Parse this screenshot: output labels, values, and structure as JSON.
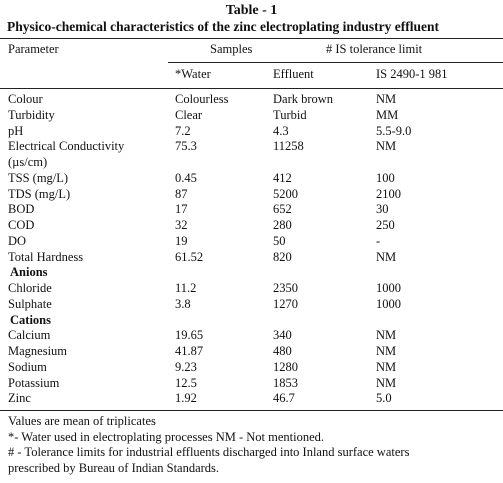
{
  "table": {
    "caption": "Table -  1",
    "title": "Physico-chemical characteristics of the zinc electroplating industry effluent",
    "header": {
      "parameter": "Parameter",
      "samples": "Samples",
      "limit": "# IS tolerance limit",
      "columns": [
        "*Water",
        "Effluent",
        "IS 2490-1 981"
      ]
    },
    "rows": [
      {
        "cells": [
          "Colour",
          "Colourless",
          "Dark brown",
          "NM"
        ]
      },
      {
        "cells": [
          "Turbidity",
          "Clear",
          "Turbid",
          "MM"
        ]
      },
      {
        "cells": [
          "pH",
          "7.2",
          "4.3",
          "5.5-9.0"
        ]
      },
      {
        "cells": [
          "Electrical Conductivity",
          "75.3",
          "11258",
          "NM"
        ]
      },
      {
        "cells": [
          "(µs/cm)"
        ]
      },
      {
        "cells": [
          "TSS  (mg/L)",
          "0.45",
          "412",
          "100"
        ]
      },
      {
        "cells": [
          "TDS (mg/L)",
          "87",
          "5200",
          "2100"
        ]
      },
      {
        "cells": [
          "BOD",
          "17",
          "652",
          "30"
        ]
      },
      {
        "cells": [
          "COD",
          "32",
          "280",
          "250"
        ]
      },
      {
        "cells": [
          "DO",
          "19",
          "50",
          "-"
        ]
      },
      {
        "cells": [
          "Total Hardness",
          "61.52",
          "820",
          "NM"
        ]
      },
      {
        "section": "Anions"
      },
      {
        "cells": [
          "Chloride",
          "11.2",
          "2350",
          "1000"
        ]
      },
      {
        "cells": [
          "Sulphate",
          "3.8",
          "1270",
          "1000"
        ]
      },
      {
        "section": "Cations"
      },
      {
        "cells": [
          "Calcium",
          "19.65",
          "340",
          "NM"
        ]
      },
      {
        "cells": [
          "Magnesium",
          "41.87",
          "480",
          "NM"
        ]
      },
      {
        "cells": [
          "Sodium",
          "9.23",
          "1280",
          "NM"
        ]
      },
      {
        "cells": [
          "Potassium",
          "12.5",
          "1853",
          "NM"
        ]
      },
      {
        "cells": [
          "Zinc",
          "1.92",
          "46.7",
          "5.0"
        ]
      }
    ],
    "notes": [
      "Values are mean of triplicates",
      "*- Water used  in electroplating processes NM - Not mentioned.",
      "# - Tolerance limits for industrial effluents discharged into Inland surface waters",
      "prescribed by Bureau of Indian Standards."
    ]
  }
}
